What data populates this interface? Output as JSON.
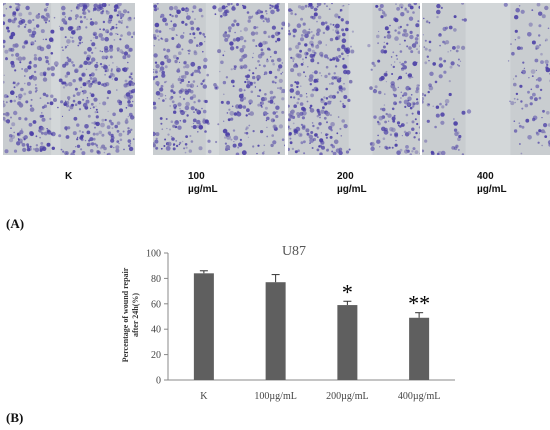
{
  "panels": {
    "labels": [
      {
        "line1": "K",
        "line2": ""
      },
      {
        "line1": "100",
        "line2": "µg/mL"
      },
      {
        "line1": "200",
        "line2": "µg/mL"
      },
      {
        "line1": "400",
        "line2": "µg/mL"
      }
    ],
    "stain_color": "#4b3fa6",
    "background_color": "#c9cdd0"
  },
  "section_labels": {
    "a": "(A)",
    "b": "(B)"
  },
  "chart_data": {
    "type": "bar",
    "title": "U87",
    "ylabel_line1": "Percentage of wound repair",
    "ylabel_line2": "after 24h(%)",
    "xlabel": "",
    "categories": [
      "K",
      "100µg/mL",
      "200µg/mL",
      "400µg/mL"
    ],
    "values": [
      84,
      77,
      59,
      49
    ],
    "errors": [
      2,
      6,
      3,
      4
    ],
    "significance": [
      "",
      "",
      "*",
      "**"
    ],
    "ylim": [
      0,
      100
    ],
    "yticks": [
      0,
      20,
      40,
      60,
      80,
      100
    ],
    "bar_color": "#5f5f5f",
    "grid": false
  }
}
